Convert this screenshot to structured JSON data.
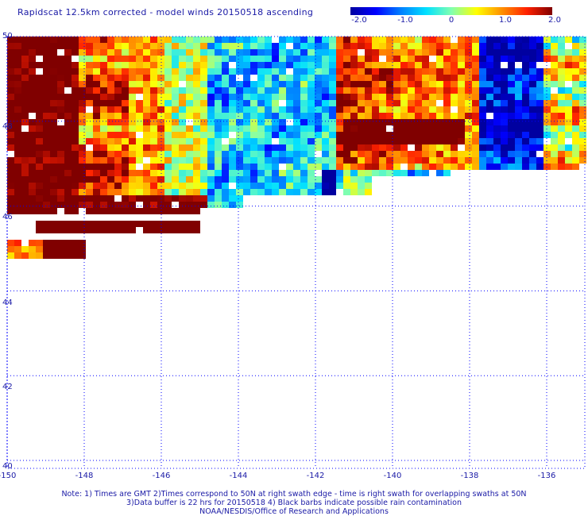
{
  "title": "Rapidscat 12.5km corrected - model winds 20150518 ascending",
  "colorbar": {
    "range": [
      -2.0,
      2.0
    ],
    "ticks": [
      "-2.0",
      "-1.0",
      "0",
      "1.0",
      "2.0"
    ],
    "colors": [
      "#0000a0",
      "#0000ff",
      "#0080ff",
      "#00e0ff",
      "#80ffb0",
      "#ffff00",
      "#ff9000",
      "#ff2000",
      "#800000"
    ]
  },
  "map": {
    "lon_range": [
      -150,
      -135
    ],
    "lat_range": [
      40,
      50
    ],
    "lat_labels": [
      "50",
      "48",
      "46",
      "44",
      "42",
      "40"
    ],
    "lon_labels": [
      "-150",
      "-148",
      "-146",
      "-144",
      "-142",
      "-140",
      "-138",
      "-136"
    ],
    "grid_color": "#0000ff"
  },
  "notes": [
    "Note: 1) Times are GMT 2)Times correspond to 50N at right swath edge - time is right swath for overlapping swaths at 50N",
    "3)Data buffer is 22 hrs for 20150518 4) Black barbs indicate possible rain contamination",
    "NOAA/NESDIS/Office of Research and Applications"
  ]
}
